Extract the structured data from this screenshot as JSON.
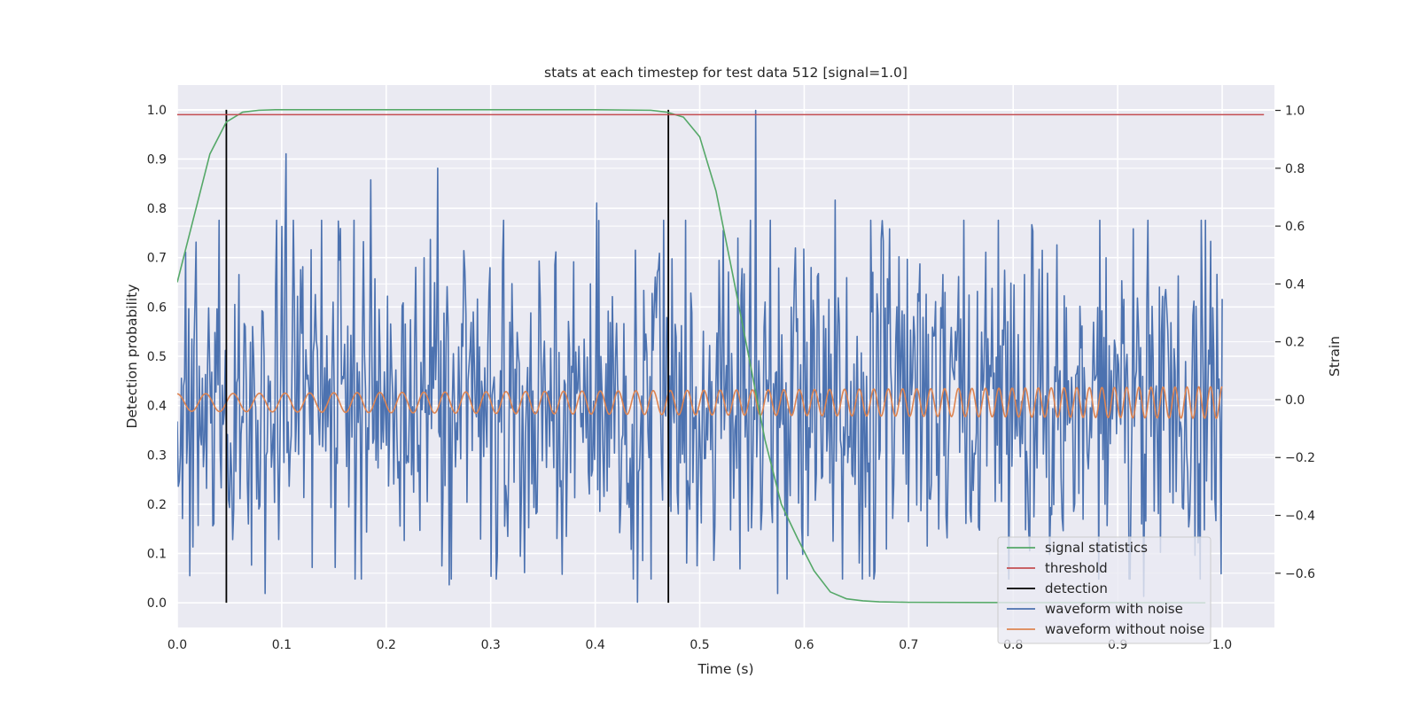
{
  "chart_data": {
    "type": "line",
    "title": "stats at each timestep for test data 512 [signal=1.0]",
    "xlabel": "Time (s)",
    "ylabel_left": "Detection probability",
    "ylabel_right": "Strain",
    "xlim": [
      0.0,
      1.05
    ],
    "ylim_left": [
      -0.05,
      1.05
    ],
    "ylim_right": [
      -0.7875,
      1.0875
    ],
    "x_ticks": [
      0.0,
      0.1,
      0.2,
      0.3,
      0.4,
      0.5,
      0.6,
      0.7,
      0.8,
      0.9,
      1.0
    ],
    "x_tick_labels": [
      "0.0",
      "0.1",
      "0.2",
      "0.3",
      "0.4",
      "0.5",
      "0.6",
      "0.7",
      "0.8",
      "0.9",
      "1.0"
    ],
    "y_left_ticks": [
      0.0,
      0.1,
      0.2,
      0.3,
      0.4,
      0.5,
      0.6,
      0.7,
      0.8,
      0.9,
      1.0
    ],
    "y_left_tick_labels": [
      "0.0",
      "0.1",
      "0.2",
      "0.3",
      "0.4",
      "0.5",
      "0.6",
      "0.7",
      "0.8",
      "0.9",
      "1.0"
    ],
    "y_right_ticks": [
      -0.6,
      -0.4,
      -0.2,
      0.0,
      0.2,
      0.4,
      0.6,
      0.8,
      1.0
    ],
    "y_right_tick_labels": [
      "−0.6",
      "−0.4",
      "−0.2",
      "0.0",
      "0.2",
      "0.4",
      "0.6",
      "0.8",
      "1.0"
    ],
    "grid": true,
    "legend_position": "lower-right",
    "colors": {
      "signal_statistics": "#55a868",
      "threshold": "#c44e52",
      "detection": "#000000",
      "waveform_with_noise": "#4c72b0",
      "waveform_without_noise": "#dd8452",
      "plot_background": "#eaeaf2",
      "grid": "#ffffff"
    },
    "legend": [
      {
        "key": "signal_statistics",
        "label": "signal statistics"
      },
      {
        "key": "threshold",
        "label": "threshold"
      },
      {
        "key": "detection",
        "label": "detection"
      },
      {
        "key": "waveform_with_noise",
        "label": "waveform with noise"
      },
      {
        "key": "waveform_without_noise",
        "label": "waveform without noise"
      }
    ],
    "threshold": {
      "value": 0.99,
      "x": [
        0.0,
        1.04
      ]
    },
    "detections": [
      {
        "x": 0.047,
        "y": [
          0.0,
          1.0
        ]
      },
      {
        "x": 0.47,
        "y": [
          0.0,
          1.0
        ]
      }
    ],
    "signal_statistics": {
      "x": [
        0.0,
        0.0156,
        0.0312,
        0.0469,
        0.0625,
        0.0781,
        0.0938,
        0.1,
        0.2,
        0.3,
        0.4,
        0.4531,
        0.4688,
        0.4844,
        0.5,
        0.5156,
        0.5312,
        0.5469,
        0.5625,
        0.5781,
        0.5938,
        0.6094,
        0.625,
        0.6406,
        0.6562,
        0.6719,
        0.7,
        0.8,
        0.9,
        0.984
      ],
      "y": [
        0.65,
        0.78,
        0.91,
        0.975,
        0.995,
        0.999,
        1.0,
        1.0,
        1.0,
        1.0,
        1.0,
        0.999,
        0.995,
        0.985,
        0.945,
        0.835,
        0.67,
        0.5,
        0.33,
        0.2,
        0.13,
        0.065,
        0.022,
        0.008,
        0.004,
        0.002,
        0.001,
        0.0005,
        0.0005,
        0.0
      ]
    },
    "waveform_with_noise": {
      "x_range": [
        0.0,
        1.0
      ],
      "samples": 1000,
      "amplitude_std": 0.3,
      "peaks": [
        {
          "x": 0.104,
          "y": 0.85
        },
        {
          "x": 0.185,
          "y": 0.76
        },
        {
          "x": 0.249,
          "y": 0.8
        },
        {
          "x": 0.401,
          "y": 0.68
        },
        {
          "x": 0.554,
          "y": 1.0
        },
        {
          "x": 0.63,
          "y": 0.69
        },
        {
          "x": 0.084,
          "y": -0.67
        },
        {
          "x": 0.26,
          "y": -0.64
        },
        {
          "x": 0.44,
          "y": -0.7
        },
        {
          "x": 0.575,
          "y": -0.67
        },
        {
          "x": 0.925,
          "y": -0.68
        }
      ]
    },
    "waveform_without_noise": {
      "x_range": [
        0.0,
        1.0
      ],
      "samples": 2000,
      "start_amplitude": 0.03,
      "end_amplitude": 0.055,
      "start_frequency_hz": 36,
      "end_frequency_hz": 90,
      "offset": -0.01
    }
  }
}
